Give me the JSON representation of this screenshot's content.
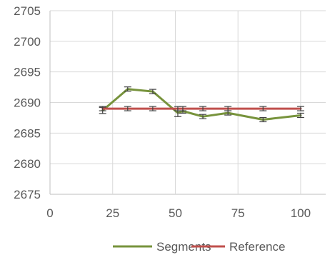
{
  "chart_data": {
    "type": "line",
    "title": "",
    "xlabel": "",
    "ylabel": "",
    "xlim": [
      0,
      110
    ],
    "ylim": [
      2675,
      2705
    ],
    "x_ticks": [
      0,
      25,
      50,
      75,
      100
    ],
    "y_ticks": [
      2675,
      2680,
      2685,
      2690,
      2695,
      2700,
      2705
    ],
    "grid": "horizontal and vertical",
    "legend_position": "bottom",
    "series": [
      {
        "name": "Segments",
        "color": "#77933C",
        "x": [
          21,
          31,
          41,
          51,
          53,
          61,
          71,
          85,
          100
        ],
        "y": [
          2688.7,
          2692.2,
          2691.8,
          2688.3,
          2688.6,
          2687.7,
          2688.3,
          2687.2,
          2687.9
        ],
        "error": [
          0.5,
          0.35,
          0.35,
          0.6,
          0.35,
          0.35,
          0.35,
          0.35,
          0.35
        ]
      },
      {
        "name": "Reference",
        "color": "#C0504D",
        "x": [
          21,
          31,
          41,
          51,
          53,
          61,
          71,
          85,
          100
        ],
        "y": [
          2689.0,
          2689.0,
          2689.0,
          2689.0,
          2689.0,
          2689.0,
          2689.0,
          2689.0,
          2689.0
        ],
        "error": [
          0.35,
          0.35,
          0.35,
          0.35,
          0.35,
          0.35,
          0.35,
          0.35,
          0.35
        ]
      }
    ]
  }
}
